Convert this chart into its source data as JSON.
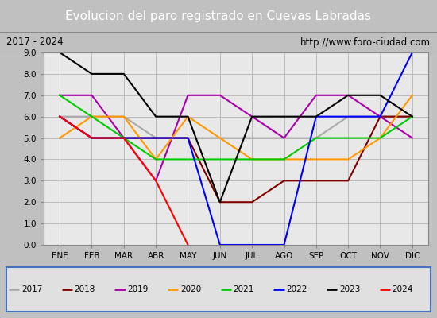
{
  "title": "Evolucion del paro registrado en Cuevas Labradas",
  "subtitle_left": "2017 - 2024",
  "subtitle_right": "http://www.foro-ciudad.com",
  "ylim": [
    0.0,
    9.0
  ],
  "yticks": [
    0.0,
    1.0,
    2.0,
    3.0,
    4.0,
    5.0,
    6.0,
    7.0,
    8.0,
    9.0
  ],
  "months": [
    "ENE",
    "FEB",
    "MAR",
    "ABR",
    "MAY",
    "JUN",
    "JUL",
    "AGO",
    "SEP",
    "OCT",
    "NOV",
    "DIC"
  ],
  "series": {
    "2017": {
      "color": "#aaaaaa",
      "data": [
        6.0,
        6.0,
        6.0,
        5.0,
        5.0,
        5.0,
        5.0,
        5.0,
        5.0,
        6.0,
        6.0,
        6.0
      ]
    },
    "2018": {
      "color": "#800000",
      "data": [
        6.0,
        5.0,
        5.0,
        5.0,
        5.0,
        2.0,
        2.0,
        3.0,
        3.0,
        3.0,
        6.0,
        6.0
      ]
    },
    "2019": {
      "color": "#aa00aa",
      "data": [
        7.0,
        7.0,
        5.0,
        3.0,
        7.0,
        7.0,
        6.0,
        5.0,
        7.0,
        7.0,
        6.0,
        5.0
      ]
    },
    "2020": {
      "color": "#ff9900",
      "data": [
        5.0,
        6.0,
        6.0,
        4.0,
        6.0,
        5.0,
        4.0,
        4.0,
        4.0,
        4.0,
        5.0,
        7.0
      ]
    },
    "2021": {
      "color": "#00cc00",
      "data": [
        7.0,
        6.0,
        5.0,
        4.0,
        4.0,
        4.0,
        4.0,
        4.0,
        5.0,
        5.0,
        5.0,
        6.0
      ]
    },
    "2022": {
      "color": "#0000ff",
      "data": [
        6.0,
        5.0,
        5.0,
        5.0,
        5.0,
        0.0,
        0.0,
        0.0,
        6.0,
        6.0,
        6.0,
        9.0
      ]
    },
    "2023": {
      "color": "#000000",
      "data": [
        9.0,
        8.0,
        8.0,
        6.0,
        6.0,
        2.0,
        6.0,
        6.0,
        6.0,
        7.0,
        7.0,
        6.0
      ]
    },
    "2024": {
      "color": "#ff0000",
      "data": [
        6.0,
        5.0,
        5.0,
        3.0,
        0.0,
        null,
        null,
        null,
        null,
        null,
        null,
        null
      ]
    }
  },
  "title_bg_color": "#4472c4",
  "title_font_color": "#ffffff",
  "subtitle_bg_color": "#d8d8d8",
  "plot_bg_color": "#e8e8e8",
  "grid_color": "#bbbbbb",
  "legend_bg_color": "#e0e0e0",
  "legend_border_color": "#4472c4",
  "outer_bg_color": "#c0c0c0"
}
